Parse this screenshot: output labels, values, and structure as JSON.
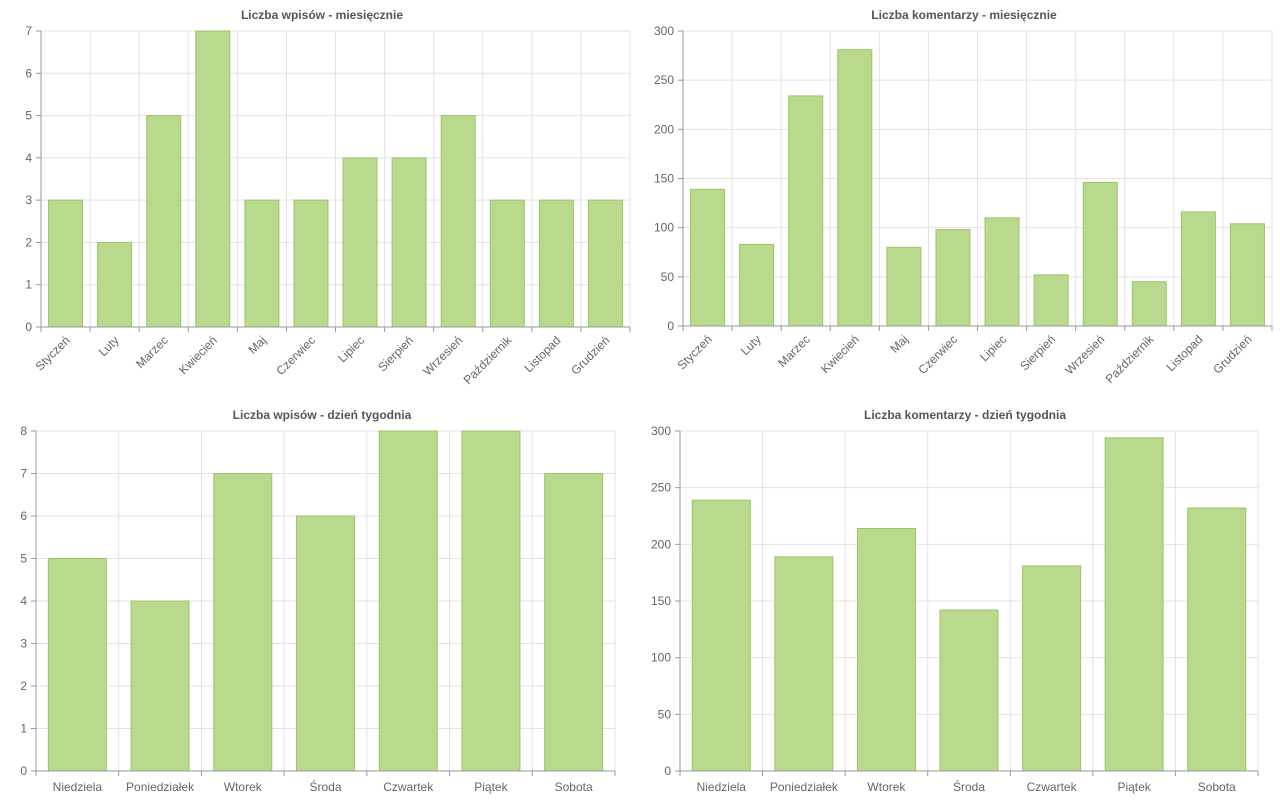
{
  "colors": {
    "bar_fill": "#b9d98d",
    "bar_stroke": "#9cc46a",
    "grid": "#e3e3e3",
    "axis": "#999999"
  },
  "chart_data": [
    {
      "type": "bar",
      "title": "Liczba wpisów - miesięcznie",
      "categories": [
        "Styczeń",
        "Luty",
        "Marzec",
        "Kwiecień",
        "Maj",
        "Czerwiec",
        "Lipiec",
        "Sierpień",
        "Wrzesień",
        "Październik",
        "Listopad",
        "Grudzień"
      ],
      "values": [
        3,
        2,
        5,
        7,
        3,
        3,
        4,
        4,
        5,
        3,
        3,
        3
      ],
      "ylim": [
        0,
        7
      ],
      "yticks": [
        0,
        1,
        2,
        3,
        4,
        5,
        6,
        7
      ],
      "xlabel_rotation": "rotated",
      "grid": true
    },
    {
      "type": "bar",
      "title": "Liczba komentarzy - miesięcznie",
      "categories": [
        "Styczeń",
        "Luty",
        "Marzec",
        "Kwiecień",
        "Maj",
        "Czerwiec",
        "Lipiec",
        "Sierpień",
        "Wrzesień",
        "Październik",
        "Listopad",
        "Grudzień"
      ],
      "values": [
        139,
        83,
        234,
        281,
        80,
        98,
        110,
        52,
        146,
        45,
        116,
        104
      ],
      "ylim": [
        0,
        300
      ],
      "yticks": [
        0,
        50,
        100,
        150,
        200,
        250,
        300
      ],
      "xlabel_rotation": "rotated",
      "grid": true
    },
    {
      "type": "bar",
      "title": "Liczba wpisów - dzień tygodnia",
      "categories": [
        "Niedziela",
        "Poniedziałek",
        "Wtorek",
        "Środa",
        "Czwartek",
        "Piątek",
        "Sobota"
      ],
      "values": [
        5,
        4,
        7,
        6,
        8,
        8,
        7
      ],
      "ylim": [
        0,
        8
      ],
      "yticks": [
        0,
        1,
        2,
        3,
        4,
        5,
        6,
        7,
        8
      ],
      "xlabel_rotation": "horizontal",
      "grid": true
    },
    {
      "type": "bar",
      "title": "Liczba komentarzy - dzień tygodnia",
      "categories": [
        "Niedziela",
        "Poniedziałek",
        "Wtorek",
        "Środa",
        "Czwartek",
        "Piątek",
        "Sobota"
      ],
      "values": [
        239,
        189,
        214,
        142,
        181,
        294,
        232
      ],
      "ylim": [
        0,
        300
      ],
      "yticks": [
        0,
        50,
        100,
        150,
        200,
        250,
        300
      ],
      "xlabel_rotation": "horizontal",
      "grid": true
    }
  ]
}
